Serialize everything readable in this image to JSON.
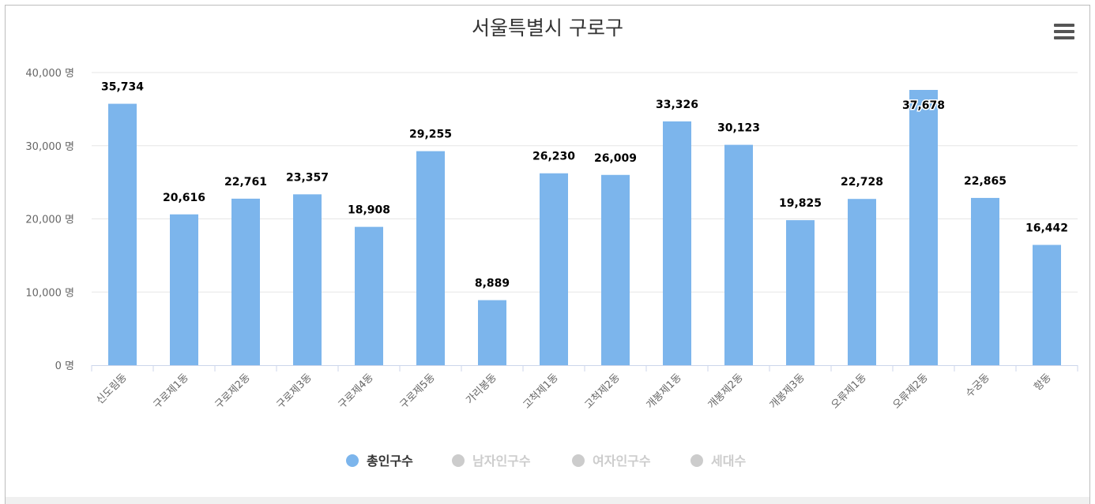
{
  "title": "서울특별시 구로구",
  "menu_icon": "hamburger-menu-icon",
  "chart_data": {
    "type": "bar",
    "title": "서울특별시 구로구",
    "categories": [
      "신도림동",
      "구로제1동",
      "구로제2동",
      "구로제3동",
      "구로제4동",
      "구로제5동",
      "가리봉동",
      "고척제1동",
      "고척제2동",
      "개봉제1동",
      "개봉제2동",
      "개봉제3동",
      "오류제1동",
      "오류제2동",
      "수궁동",
      "항동"
    ],
    "series": [
      {
        "name": "총인구수",
        "values": [
          35734,
          20616,
          22761,
          23357,
          18908,
          29255,
          8889,
          26230,
          26009,
          33326,
          30123,
          19825,
          22728,
          37678,
          22865,
          16442
        ],
        "color": "#7cb5ec"
      }
    ],
    "data_labels": [
      "35,734",
      "20,616",
      "22,761",
      "23,357",
      "18,908",
      "29,255",
      "8,889",
      "26,230",
      "26,009",
      "33,326",
      "30,123",
      "19,825",
      "22,728",
      "37,678",
      "22,865",
      "16,442"
    ],
    "yticks": [
      0,
      10000,
      20000,
      30000,
      40000
    ],
    "ytick_labels": [
      "0 명",
      "10,000 명",
      "20,000 명",
      "30,000 명",
      "40,000 명"
    ],
    "ylim": [
      0,
      40000
    ],
    "grid": true,
    "legend_position": "bottom-center",
    "legend": [
      {
        "name": "총인구수",
        "active": true,
        "color": "#7cb5ec"
      },
      {
        "name": "남자인구수",
        "active": false,
        "color": "#cccccc"
      },
      {
        "name": "여자인구수",
        "active": false,
        "color": "#cccccc"
      },
      {
        "name": "세대수",
        "active": false,
        "color": "#cccccc"
      }
    ]
  }
}
